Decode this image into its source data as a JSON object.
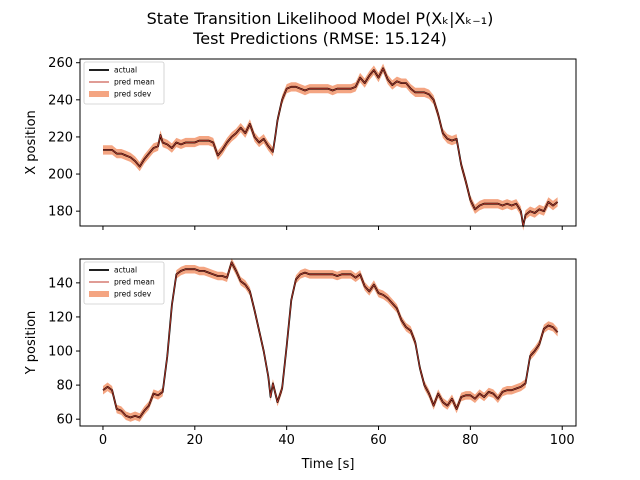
{
  "figure": {
    "title_line1": "State Transition Likelihood Model P(Xₖ|Xₖ₋₁)",
    "title_line2": "Test Predictions (RMSE: 15.124)"
  },
  "colors": {
    "actual": "#000000",
    "pred_mean": "#c0392b",
    "pred_sdev": "#f4a582"
  },
  "chart_data": [
    {
      "type": "line",
      "ylabel": "X position",
      "xlabel": "",
      "xlim": [
        -5,
        103
      ],
      "ylim": [
        172,
        262
      ],
      "xticks": [
        0,
        20,
        40,
        60,
        80,
        100
      ],
      "xticklabels_visible": false,
      "yticks": [
        180,
        200,
        220,
        240,
        260
      ],
      "grid": false,
      "legend_position": "top-left",
      "legend": [
        "actual",
        "pred mean",
        "pred sdev"
      ],
      "sdev": 2.5,
      "series": [
        {
          "name": "actual",
          "points": [
            [
              0,
              213
            ],
            [
              1,
              213
            ],
            [
              2,
              213
            ],
            [
              3,
              211
            ],
            [
              4,
              211
            ],
            [
              5,
              210
            ],
            [
              6,
              209
            ],
            [
              7,
              207
            ],
            [
              8,
              204
            ],
            [
              9,
              208
            ],
            [
              10,
              211
            ],
            [
              11,
              214
            ],
            [
              12,
              215
            ],
            [
              12.5,
              221
            ],
            [
              13,
              217
            ],
            [
              14,
              216
            ],
            [
              15,
              214
            ],
            [
              16,
              217
            ],
            [
              17,
              216
            ],
            [
              18,
              217
            ],
            [
              19,
              217
            ],
            [
              20,
              217
            ],
            [
              21,
              218
            ],
            [
              22,
              218
            ],
            [
              23,
              218
            ],
            [
              24,
              217
            ],
            [
              25,
              210
            ],
            [
              26,
              213
            ],
            [
              27,
              217
            ],
            [
              28,
              220
            ],
            [
              29,
              222
            ],
            [
              30,
              225
            ],
            [
              31,
              222
            ],
            [
              32,
              227
            ],
            [
              33,
              220
            ],
            [
              34,
              217
            ],
            [
              35,
              219
            ],
            [
              36,
              215
            ],
            [
              37,
              212
            ],
            [
              37.5,
              220
            ],
            [
              38,
              229
            ],
            [
              39,
              240
            ],
            [
              40,
              246
            ],
            [
              41,
              247
            ],
            [
              42,
              247
            ],
            [
              43,
              246
            ],
            [
              44,
              245
            ],
            [
              45,
              246
            ],
            [
              46,
              246
            ],
            [
              47,
              246
            ],
            [
              48,
              246
            ],
            [
              49,
              246
            ],
            [
              50,
              245
            ],
            [
              51,
              246
            ],
            [
              52,
              246
            ],
            [
              53,
              246
            ],
            [
              54,
              246
            ],
            [
              55,
              247
            ],
            [
              56,
              252
            ],
            [
              57,
              249
            ],
            [
              58,
              253
            ],
            [
              59,
              256
            ],
            [
              60,
              252
            ],
            [
              61,
              257
            ],
            [
              62,
              251
            ],
            [
              63,
              248
            ],
            [
              64,
              250
            ],
            [
              65,
              249
            ],
            [
              66,
              249
            ],
            [
              67,
              246
            ],
            [
              68,
              244
            ],
            [
              69,
              244
            ],
            [
              70,
              244
            ],
            [
              71,
              243
            ],
            [
              72,
              240
            ],
            [
              73,
              232
            ],
            [
              74,
              222
            ],
            [
              75,
              219
            ],
            [
              76,
              218
            ],
            [
              77,
              219
            ],
            [
              78,
              205
            ],
            [
              79,
              196
            ],
            [
              80,
              186
            ],
            [
              81,
              181
            ],
            [
              82,
              183
            ],
            [
              83,
              184
            ],
            [
              84,
              184
            ],
            [
              85,
              184
            ],
            [
              86,
              184
            ],
            [
              87,
              183
            ],
            [
              88,
              184
            ],
            [
              89,
              183
            ],
            [
              90,
              184
            ],
            [
              91,
              180
            ],
            [
              91.5,
              172
            ],
            [
              92,
              178
            ],
            [
              93,
              180
            ],
            [
              94,
              179
            ],
            [
              95,
              181
            ],
            [
              96,
              180
            ],
            [
              97,
              185
            ],
            [
              98,
              183
            ],
            [
              99,
              185
            ]
          ]
        },
        {
          "name": "pred mean",
          "source": "actual"
        }
      ]
    },
    {
      "type": "line",
      "ylabel": "Y position",
      "xlabel": "Time [s]",
      "xlim": [
        -5,
        103
      ],
      "ylim": [
        56,
        154
      ],
      "xticks": [
        0,
        20,
        40,
        60,
        80,
        100
      ],
      "xticklabels_visible": true,
      "yticks": [
        60,
        80,
        100,
        120,
        140
      ],
      "grid": false,
      "legend_position": "top-left",
      "legend": [
        "actual",
        "pred mean",
        "pred sdev"
      ],
      "sdev": 2.5,
      "series": [
        {
          "name": "actual",
          "points": [
            [
              0,
              77
            ],
            [
              1,
              79
            ],
            [
              2,
              77
            ],
            [
              3,
              66
            ],
            [
              4,
              65
            ],
            [
              5,
              62
            ],
            [
              6,
              61
            ],
            [
              7,
              62
            ],
            [
              8,
              61
            ],
            [
              9,
              65
            ],
            [
              10,
              68
            ],
            [
              11,
              75
            ],
            [
              12,
              74
            ],
            [
              13,
              76
            ],
            [
              14,
              97
            ],
            [
              15,
              127
            ],
            [
              16,
              145
            ],
            [
              17,
              147
            ],
            [
              18,
              148
            ],
            [
              19,
              148
            ],
            [
              20,
              148
            ],
            [
              21,
              147
            ],
            [
              22,
              147
            ],
            [
              23,
              146
            ],
            [
              24,
              145
            ],
            [
              25,
              144
            ],
            [
              26,
              144
            ],
            [
              27,
              143
            ],
            [
              28,
              152
            ],
            [
              29,
              147
            ],
            [
              30,
              141
            ],
            [
              31,
              139
            ],
            [
              32,
              135
            ],
            [
              33,
              124
            ],
            [
              34,
              112
            ],
            [
              35,
              100
            ],
            [
              36,
              85
            ],
            [
              36.5,
              73
            ],
            [
              37,
              81
            ],
            [
              38,
              70
            ],
            [
              39,
              78
            ],
            [
              40,
              103
            ],
            [
              41,
              130
            ],
            [
              42,
              142
            ],
            [
              43,
              145
            ],
            [
              44,
              146
            ],
            [
              45,
              145
            ],
            [
              46,
              145
            ],
            [
              47,
              145
            ],
            [
              48,
              145
            ],
            [
              49,
              145
            ],
            [
              50,
              145
            ],
            [
              51,
              144
            ],
            [
              52,
              145
            ],
            [
              53,
              145
            ],
            [
              54,
              145
            ],
            [
              55,
              143
            ],
            [
              56,
              145
            ],
            [
              57,
              138
            ],
            [
              58,
              135
            ],
            [
              59,
              139
            ],
            [
              60,
              134
            ],
            [
              61,
              133
            ],
            [
              62,
              131
            ],
            [
              63,
              128
            ],
            [
              64,
              125
            ],
            [
              65,
              118
            ],
            [
              66,
              114
            ],
            [
              67,
              112
            ],
            [
              68,
              105
            ],
            [
              69,
              90
            ],
            [
              70,
              80
            ],
            [
              71,
              75
            ],
            [
              72,
              68
            ],
            [
              73,
              75
            ],
            [
              74,
              70
            ],
            [
              75,
              68
            ],
            [
              76,
              72
            ],
            [
              77,
              66
            ],
            [
              78,
              73
            ],
            [
              79,
              74
            ],
            [
              80,
              74
            ],
            [
              81,
              72
            ],
            [
              82,
              75
            ],
            [
              83,
              73
            ],
            [
              84,
              76
            ],
            [
              85,
              75
            ],
            [
              86,
              72
            ],
            [
              87,
              76
            ],
            [
              88,
              77
            ],
            [
              89,
              77
            ],
            [
              90,
              78
            ],
            [
              91,
              79
            ],
            [
              92,
              81
            ],
            [
              93,
              97
            ],
            [
              94,
              100
            ],
            [
              95,
              104
            ],
            [
              96,
              113
            ],
            [
              97,
              115
            ],
            [
              98,
              114
            ],
            [
              99,
              111
            ]
          ]
        },
        {
          "name": "pred mean",
          "source": "actual"
        }
      ]
    }
  ]
}
